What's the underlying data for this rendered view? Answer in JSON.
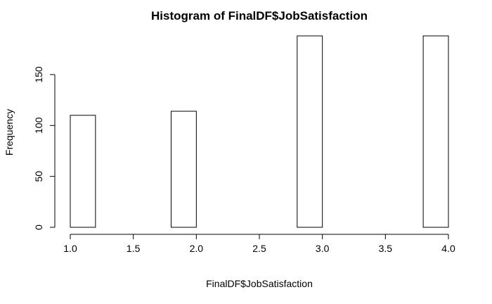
{
  "chart_data": {
    "type": "bar",
    "title": "Histogram of FinalDF$JobSatisfaction",
    "xlabel": "FinalDF$JobSatisfaction",
    "ylabel": "Frequency",
    "bins": [
      {
        "start": 1.0,
        "end": 1.2,
        "count": 110
      },
      {
        "start": 1.2,
        "end": 1.4,
        "count": 0
      },
      {
        "start": 1.4,
        "end": 1.6,
        "count": 0
      },
      {
        "start": 1.6,
        "end": 1.8,
        "count": 0
      },
      {
        "start": 1.8,
        "end": 2.0,
        "count": 114
      },
      {
        "start": 2.0,
        "end": 2.2,
        "count": 0
      },
      {
        "start": 2.2,
        "end": 2.4,
        "count": 0
      },
      {
        "start": 2.4,
        "end": 2.6,
        "count": 0
      },
      {
        "start": 2.6,
        "end": 2.8,
        "count": 0
      },
      {
        "start": 2.8,
        "end": 3.0,
        "count": 188
      },
      {
        "start": 3.0,
        "end": 3.2,
        "count": 0
      },
      {
        "start": 3.2,
        "end": 3.4,
        "count": 0
      },
      {
        "start": 3.4,
        "end": 3.6,
        "count": 0
      },
      {
        "start": 3.6,
        "end": 3.8,
        "count": 0
      },
      {
        "start": 3.8,
        "end": 4.0,
        "count": 188
      }
    ],
    "xlim": [
      1.0,
      4.0
    ],
    "ylim": [
      0,
      188
    ],
    "x_ticks": [
      1.0,
      1.5,
      2.0,
      2.5,
      3.0,
      3.5,
      4.0
    ],
    "x_tick_labels": [
      "1.0",
      "1.5",
      "2.0",
      "2.5",
      "3.0",
      "3.5",
      "4.0"
    ],
    "y_ticks": [
      0,
      50,
      100,
      150
    ],
    "y_tick_labels": [
      "0",
      "50",
      "100",
      "150"
    ],
    "grid": false,
    "bar_fill": "#ffffff",
    "bar_stroke": "#000000"
  }
}
